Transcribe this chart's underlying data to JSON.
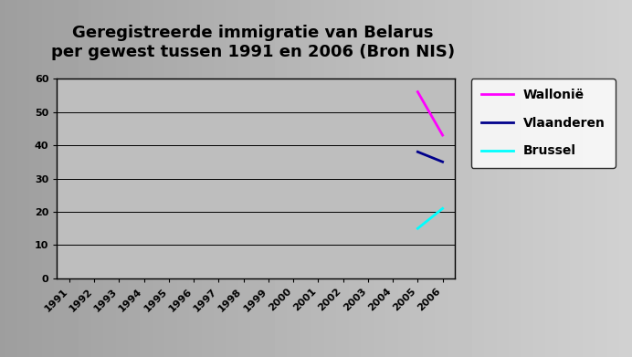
{
  "title_line1": "Geregistreerde immigratie van Belarus",
  "title_line2": "per gewest tussen 1991 en 2006 (Bron NIS)",
  "years": [
    1991,
    1992,
    1993,
    1994,
    1995,
    1996,
    1997,
    1998,
    1999,
    2000,
    2001,
    2002,
    2003,
    2004,
    2005,
    2006
  ],
  "wallonie": {
    "x": [
      2005,
      2006
    ],
    "y": [
      56,
      43
    ],
    "color": "#ff00ff",
    "label": "Wallonië"
  },
  "vlaanderen": {
    "x": [
      2005,
      2006
    ],
    "y": [
      38,
      35
    ],
    "color": "#00008b",
    "label": "Vlaanderen"
  },
  "brussel": {
    "x": [
      2005,
      2006
    ],
    "y": [
      15,
      21
    ],
    "color": "#00ffff",
    "label": "Brussel"
  },
  "ylim": [
    0,
    60
  ],
  "yticks": [
    0,
    10,
    20,
    30,
    40,
    50,
    60
  ],
  "plot_bg_color": "#bebebe",
  "fig_bg_color": "#b0b0b0",
  "title_fontsize": 13,
  "linewidth": 2.0,
  "tick_fontsize": 8,
  "legend_fontsize": 10
}
